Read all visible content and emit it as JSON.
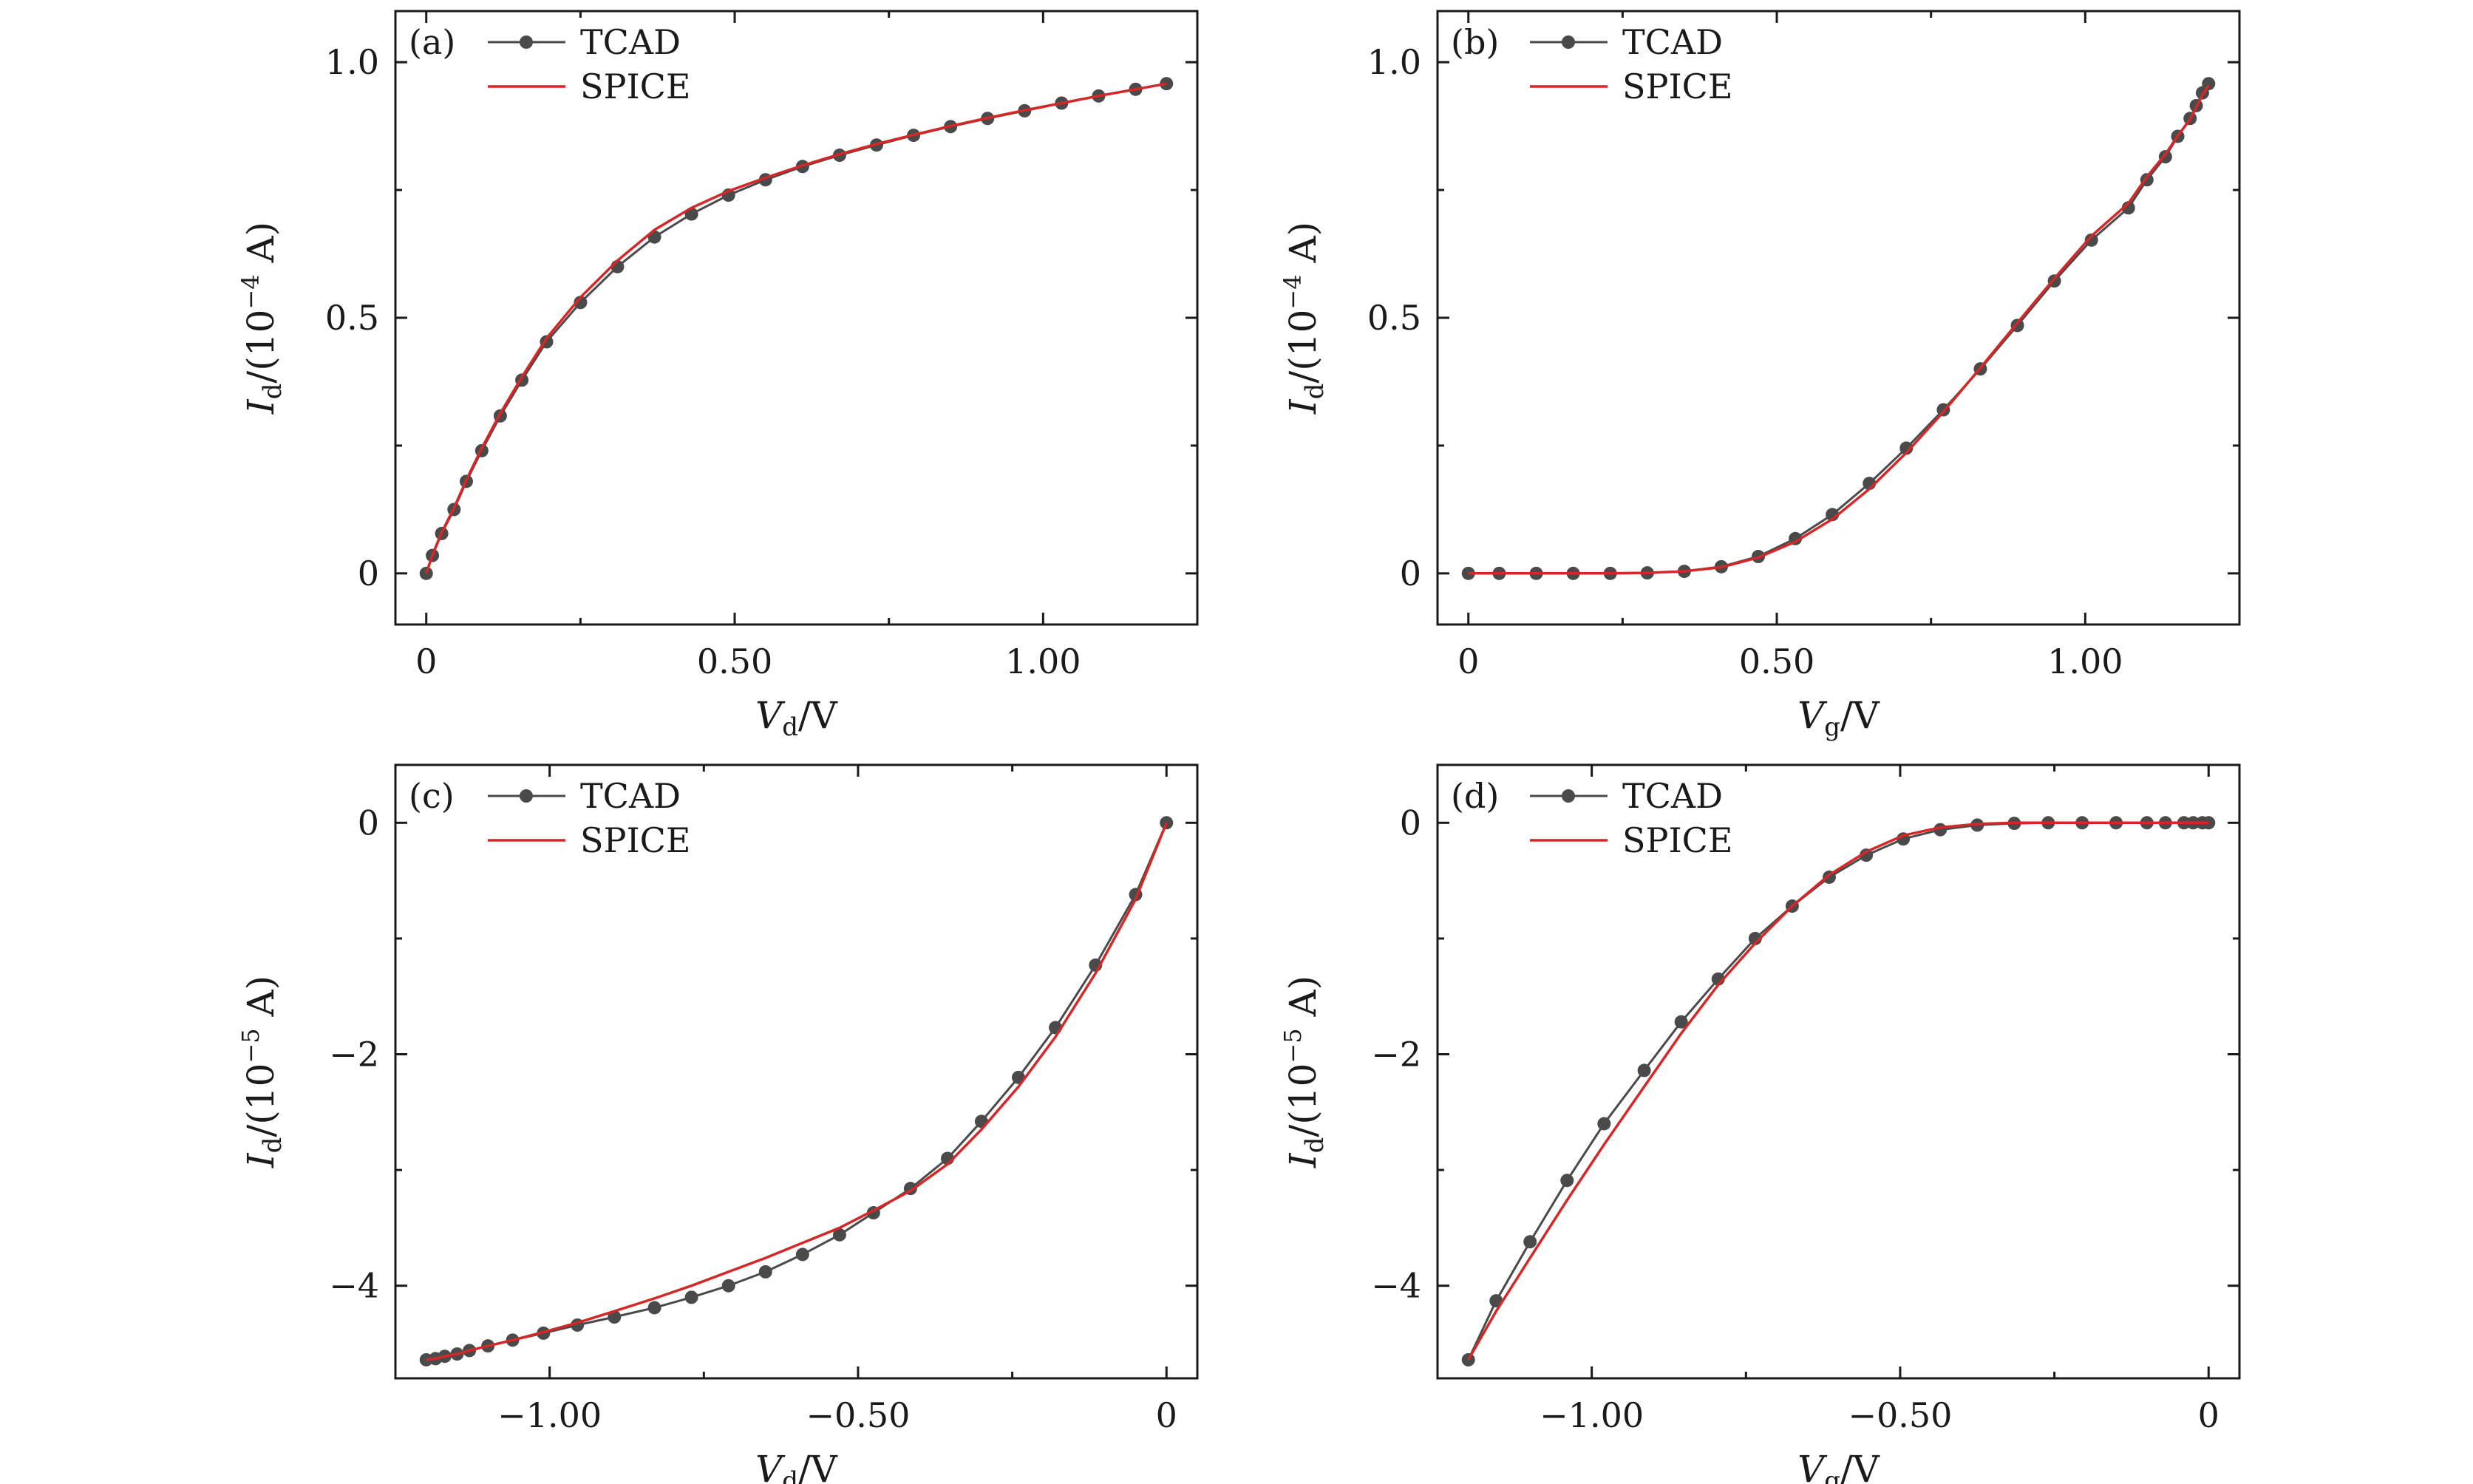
{
  "chart_data": [
    {
      "type": "line",
      "panel": "(a)",
      "xlabel_main": "V",
      "xlabel_sub": "d",
      "xlabel_unit": "/V",
      "ylabel_main": "I",
      "ylabel_sub": "d",
      "ylabel_unit": "/(10",
      "ylabel_exp": "−4",
      "ylabel_tail": " A)",
      "xlim": [
        -0.05,
        1.25
      ],
      "ylim": [
        -0.1,
        1.1
      ],
      "xticks": [
        0,
        0.5,
        1.0
      ],
      "xticklabels": [
        "0",
        "0.50",
        "1.00"
      ],
      "yticks": [
        0,
        0.5,
        1.0
      ],
      "yticklabels": [
        "0",
        "0.5",
        "1.0"
      ],
      "legend": [
        "TCAD",
        "SPICE"
      ],
      "series": [
        {
          "name": "TCAD",
          "x": [
            0,
            0.01,
            0.025,
            0.045,
            0.065,
            0.09,
            0.12,
            0.155,
            0.195,
            0.25,
            0.31,
            0.37,
            0.43,
            0.49,
            0.55,
            0.61,
            0.67,
            0.73,
            0.79,
            0.85,
            0.91,
            0.97,
            1.03,
            1.09,
            1.15,
            1.2
          ],
          "y": [
            0,
            0.035,
            0.078,
            0.125,
            0.18,
            0.24,
            0.308,
            0.378,
            0.453,
            0.53,
            0.6,
            0.658,
            0.703,
            0.74,
            0.77,
            0.796,
            0.818,
            0.838,
            0.857,
            0.874,
            0.89,
            0.905,
            0.92,
            0.934,
            0.947,
            0.958
          ]
        },
        {
          "name": "SPICE",
          "x": [
            0,
            0.01,
            0.025,
            0.045,
            0.065,
            0.09,
            0.12,
            0.155,
            0.195,
            0.25,
            0.31,
            0.37,
            0.43,
            0.49,
            0.55,
            0.61,
            0.67,
            0.73,
            0.79,
            0.85,
            0.91,
            0.97,
            1.03,
            1.09,
            1.15,
            1.2
          ],
          "y": [
            0,
            0.036,
            0.08,
            0.128,
            0.183,
            0.245,
            0.313,
            0.384,
            0.46,
            0.54,
            0.612,
            0.672,
            0.715,
            0.748,
            0.774,
            0.798,
            0.82,
            0.84,
            0.858,
            0.875,
            0.891,
            0.906,
            0.92,
            0.934,
            0.947,
            0.958
          ]
        }
      ]
    },
    {
      "type": "line",
      "panel": "(b)",
      "xlabel_main": "V",
      "xlabel_sub": "g",
      "xlabel_unit": "/V",
      "ylabel_main": "I",
      "ylabel_sub": "d",
      "ylabel_unit": "/(10",
      "ylabel_exp": "−4",
      "ylabel_tail": " A)",
      "xlim": [
        -0.05,
        1.25
      ],
      "ylim": [
        -0.1,
        1.1
      ],
      "xticks": [
        0,
        0.5,
        1.0
      ],
      "xticklabels": [
        "0",
        "0.50",
        "1.00"
      ],
      "yticks": [
        0,
        0.5,
        1.0
      ],
      "yticklabels": [
        "0",
        "0.5",
        "1.0"
      ],
      "legend": [
        "TCAD",
        "SPICE"
      ],
      "series": [
        {
          "name": "TCAD",
          "x": [
            0,
            0.05,
            0.11,
            0.17,
            0.23,
            0.29,
            0.35,
            0.41,
            0.47,
            0.53,
            0.59,
            0.65,
            0.71,
            0.77,
            0.83,
            0.89,
            0.95,
            1.01,
            1.07,
            1.1,
            1.13,
            1.15,
            1.17,
            1.18,
            1.19,
            1.2
          ],
          "y": [
            0,
            0,
            0,
            0,
            0,
            0.001,
            0.004,
            0.013,
            0.033,
            0.068,
            0.115,
            0.176,
            0.245,
            0.32,
            0.4,
            0.485,
            0.572,
            0.652,
            0.715,
            0.77,
            0.815,
            0.855,
            0.89,
            0.915,
            0.94,
            0.958
          ]
        },
        {
          "name": "SPICE",
          "x": [
            0,
            0.05,
            0.11,
            0.17,
            0.23,
            0.29,
            0.35,
            0.41,
            0.47,
            0.53,
            0.59,
            0.65,
            0.71,
            0.77,
            0.83,
            0.89,
            0.95,
            1.01,
            1.07,
            1.1,
            1.13,
            1.15,
            1.17,
            1.18,
            1.19,
            1.2
          ],
          "y": [
            0,
            0,
            0,
            0,
            0,
            0.001,
            0.004,
            0.012,
            0.031,
            0.062,
            0.106,
            0.165,
            0.236,
            0.316,
            0.402,
            0.49,
            0.577,
            0.66,
            0.724,
            0.776,
            0.82,
            0.856,
            0.888,
            0.912,
            0.936,
            0.955
          ]
        }
      ]
    },
    {
      "type": "line",
      "panel": "(c)",
      "xlabel_main": "V",
      "xlabel_sub": "d",
      "xlabel_unit": "/V",
      "ylabel_main": "I",
      "ylabel_sub": "d",
      "ylabel_unit": "/(10",
      "ylabel_exp": "−5",
      "ylabel_tail": " A)",
      "xlim": [
        -1.25,
        0.05
      ],
      "ylim": [
        -4.8,
        0.5
      ],
      "xticks": [
        -1.0,
        -0.5,
        0
      ],
      "xticklabels": [
        "−1.00",
        "−0.50",
        "0"
      ],
      "yticks": [
        -4,
        -2,
        0
      ],
      "yticklabels": [
        "−4",
        "−2",
        "0"
      ],
      "legend": [
        "TCAD",
        "SPICE"
      ],
      "series": [
        {
          "name": "TCAD",
          "x": [
            0,
            -0.05,
            -0.115,
            -0.18,
            -0.24,
            -0.3,
            -0.355,
            -0.415,
            -0.475,
            -0.53,
            -0.59,
            -0.65,
            -0.71,
            -0.77,
            -0.83,
            -0.895,
            -0.955,
            -1.01,
            -1.06,
            -1.1,
            -1.13,
            -1.15,
            -1.17,
            -1.185,
            -1.2
          ],
          "y": [
            0,
            -0.62,
            -1.23,
            -1.77,
            -2.2,
            -2.58,
            -2.9,
            -3.16,
            -3.37,
            -3.56,
            -3.73,
            -3.88,
            -4.0,
            -4.1,
            -4.19,
            -4.27,
            -4.34,
            -4.41,
            -4.47,
            -4.52,
            -4.56,
            -4.59,
            -4.61,
            -4.63,
            -4.64
          ]
        },
        {
          "name": "SPICE",
          "x": [
            0,
            -0.05,
            -0.115,
            -0.18,
            -0.24,
            -0.3,
            -0.355,
            -0.415,
            -0.475,
            -0.53,
            -0.59,
            -0.65,
            -0.71,
            -0.77,
            -0.83,
            -0.895,
            -0.955,
            -1.01,
            -1.06,
            -1.1,
            -1.13,
            -1.15,
            -1.17,
            -1.185,
            -1.2
          ],
          "y": [
            0,
            -0.66,
            -1.3,
            -1.85,
            -2.28,
            -2.65,
            -2.95,
            -3.18,
            -3.35,
            -3.5,
            -3.63,
            -3.76,
            -3.88,
            -4.0,
            -4.11,
            -4.22,
            -4.32,
            -4.4,
            -4.47,
            -4.52,
            -4.56,
            -4.59,
            -4.61,
            -4.63,
            -4.64
          ]
        }
      ]
    },
    {
      "type": "line",
      "panel": "(d)",
      "xlabel_main": "V",
      "xlabel_sub": "g",
      "xlabel_unit": "/V",
      "ylabel_main": "I",
      "ylabel_sub": "d",
      "ylabel_unit": "/(10",
      "ylabel_exp": "−5",
      "ylabel_tail": " A)",
      "xlim": [
        -1.25,
        0.05
      ],
      "ylim": [
        -4.8,
        0.5
      ],
      "xticks": [
        -1.0,
        -0.5,
        0
      ],
      "xticklabels": [
        "−1.00",
        "−0.50",
        "0"
      ],
      "yticks": [
        -4,
        -2,
        0
      ],
      "yticklabels": [
        "−4",
        "−2",
        "0"
      ],
      "legend": [
        "TCAD",
        "SPICE"
      ],
      "series": [
        {
          "name": "TCAD",
          "x": [
            -1.2,
            -1.155,
            -1.1,
            -1.04,
            -0.98,
            -0.915,
            -0.855,
            -0.795,
            -0.735,
            -0.675,
            -0.615,
            -0.555,
            -0.495,
            -0.435,
            -0.375,
            -0.315,
            -0.26,
            -0.205,
            -0.15,
            -0.1,
            -0.07,
            -0.04,
            -0.025,
            -0.01,
            0
          ],
          "y": [
            -4.64,
            -4.13,
            -3.62,
            -3.09,
            -2.6,
            -2.14,
            -1.72,
            -1.35,
            -1.0,
            -0.72,
            -0.47,
            -0.28,
            -0.14,
            -0.06,
            -0.02,
            -0.005,
            0,
            0,
            0,
            0,
            0,
            0,
            0,
            0,
            0
          ]
        },
        {
          "name": "SPICE",
          "x": [
            -1.2,
            -1.155,
            -1.1,
            -1.04,
            -0.98,
            -0.915,
            -0.855,
            -0.795,
            -0.735,
            -0.675,
            -0.615,
            -0.555,
            -0.495,
            -0.435,
            -0.375,
            -0.315,
            -0.26,
            -0.205,
            -0.15,
            -0.1,
            -0.07,
            -0.04,
            -0.025,
            -0.01,
            0
          ],
          "y": [
            -4.64,
            -4.22,
            -3.76,
            -3.26,
            -2.78,
            -2.28,
            -1.82,
            -1.4,
            -1.04,
            -0.72,
            -0.45,
            -0.25,
            -0.11,
            -0.04,
            -0.01,
            0,
            0,
            0,
            0,
            0,
            0,
            0,
            0,
            0,
            0
          ]
        }
      ]
    }
  ]
}
